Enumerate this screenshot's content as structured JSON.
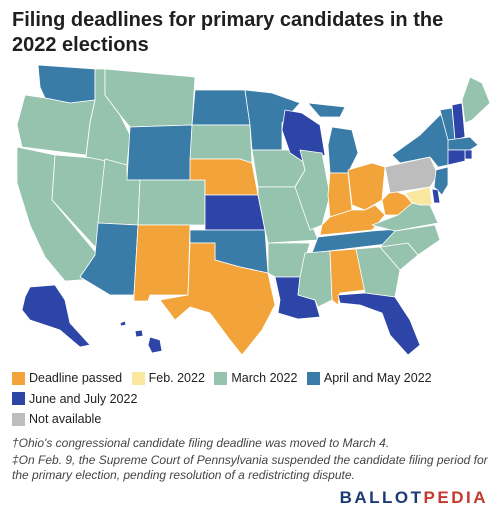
{
  "title": "Filing deadlines for primary candidates in the 2022 elections",
  "colors": {
    "deadline_passed": "#f2a33a",
    "feb_2022": "#fbe8a0",
    "march_2022": "#96c3ae",
    "april_may_2022": "#3a7ca8",
    "june_july_2022": "#2e45a8",
    "not_available": "#bdbdbd"
  },
  "legend": [
    {
      "label": "Deadline passed",
      "color": "#f2a33a"
    },
    {
      "label": "Feb. 2022",
      "color": "#fbe8a0"
    },
    {
      "label": "March 2022",
      "color": "#96c3ae"
    },
    {
      "label": "April and May 2022",
      "color": "#3a7ca8"
    },
    {
      "label": "June and July 2022",
      "color": "#2e45a8"
    },
    {
      "label": "Not available",
      "color": "#bdbdbd"
    }
  ],
  "states": {
    "WA": "April and May 2022",
    "OR": "March 2022",
    "CA": "March 2022",
    "NV": "March 2022",
    "ID": "March 2022",
    "MT": "March 2022",
    "WY": "April and May 2022",
    "UT": "March 2022",
    "CO": "March 2022",
    "AZ": "April and May 2022",
    "NM": "Deadline passed",
    "ND": "April and May 2022",
    "SD": "March 2022",
    "NE": "Deadline passed",
    "KS": "June and July 2022",
    "OK": "April and May 2022",
    "TX": "Deadline passed",
    "MN": "April and May 2022",
    "IA": "March 2022",
    "MO": "March 2022",
    "AR": "March 2022",
    "LA": "June and July 2022",
    "WI": "June and July 2022",
    "IL": "March 2022",
    "MI": "April and May 2022",
    "IN": "Deadline passed",
    "OH": "Deadline passed",
    "KY": "Deadline passed",
    "TN": "April and May 2022",
    "MS": "March 2022",
    "AL": "Deadline passed",
    "GA": "March 2022",
    "FL": "June and July 2022",
    "SC": "March 2022",
    "NC": "March 2022",
    "VA": "March 2022",
    "WV": "Deadline passed",
    "PA": "Not available",
    "NY": "April and May 2022",
    "VT": "April and May 2022",
    "NH": "June and July 2022",
    "ME": "March 2022",
    "MA": "April and May 2022",
    "RI": "June and July 2022",
    "CT": "June and July 2022",
    "NJ": "April and May 2022",
    "DE": "June and July 2022",
    "MD": "Feb. 2022",
    "AK": "June and July 2022",
    "HI": "June and July 2022"
  },
  "notes": [
    "†Ohio's congressional candidate filing deadline was moved to March 4.",
    "‡On Feb. 9, the Supreme Court of Pennsylvania suspended the candidate filing period for the primary election, pending resolution of a redistricting dispute."
  ],
  "logo": {
    "left": "BALLOT",
    "right": "PEDIA"
  }
}
